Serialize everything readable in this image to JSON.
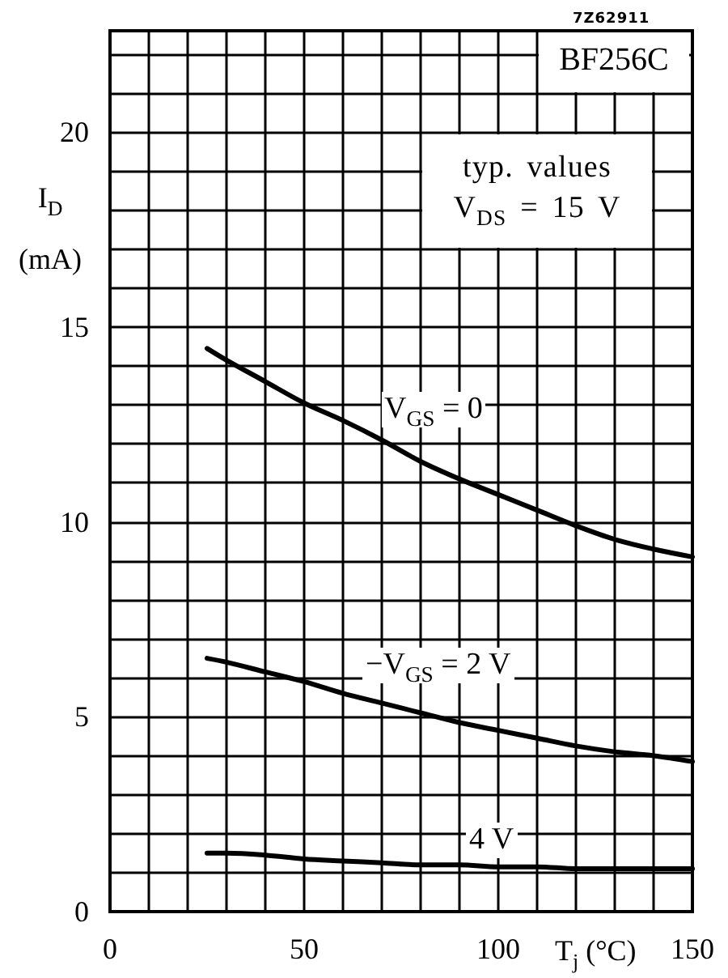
{
  "chart_data": {
    "type": "line",
    "xlabel": "T$_{j}$ (°C)",
    "ylabel": "I$_{D}$ (mA)",
    "annotations": [
      "7Z62911",
      "BF256C",
      "typ. values\nV$_{DS}$ = 15 V"
    ],
    "x": [
      25,
      30,
      40,
      50,
      60,
      70,
      80,
      90,
      100,
      110,
      120,
      130,
      140,
      150
    ],
    "series": [
      {
        "name": "V$_{GS}$ = 0",
        "color": "#000000",
        "values": [
          14.45,
          14.15,
          13.6,
          13.05,
          12.6,
          12.1,
          11.55,
          11.1,
          10.7,
          10.3,
          9.9,
          9.55,
          9.3,
          9.1
        ]
      },
      {
        "name": "−V$_{GS}$ = 2 V",
        "color": "#000000",
        "values": [
          6.5,
          6.4,
          6.15,
          5.9,
          5.6,
          5.35,
          5.1,
          4.85,
          4.65,
          4.45,
          4.25,
          4.1,
          4.0,
          3.85
        ]
      },
      {
        "name": "4 V",
        "color": "#000000",
        "values": [
          1.5,
          1.5,
          1.45,
          1.35,
          1.3,
          1.25,
          1.2,
          1.2,
          1.15,
          1.15,
          1.1,
          1.1,
          1.1,
          1.1
        ]
      }
    ],
    "xlim": [
      0,
      150
    ],
    "ylim": [
      0,
      22.6
    ],
    "xticks": [
      0,
      {
        "value": 10,
        "label": null
      },
      {
        "value": 20,
        "label": null
      },
      {
        "value": 30,
        "label": null
      },
      {
        "value": 40,
        "label": null
      },
      50,
      {
        "value": 60,
        "label": null
      },
      {
        "value": 70,
        "label": null
      },
      {
        "value": 80,
        "label": null
      },
      {
        "value": 90,
        "label": null
      },
      100,
      {
        "value": 110,
        "label": null
      },
      {
        "value": 120,
        "label": null
      },
      {
        "value": 130,
        "label": null
      },
      {
        "value": 140,
        "label": null
      },
      150
    ],
    "yticks": [
      0,
      {
        "value": 1,
        "label": null
      },
      {
        "value": 2,
        "label": null
      },
      {
        "value": 3,
        "label": null
      },
      {
        "value": 4,
        "label": null
      },
      5,
      {
        "value": 6,
        "label": null
      },
      {
        "value": 7,
        "label": null
      },
      {
        "value": 8,
        "label": null
      },
      {
        "value": 9,
        "label": null
      },
      10,
      {
        "value": 11,
        "label": null
      },
      {
        "value": 12,
        "label": null
      },
      {
        "value": 13,
        "label": null
      },
      {
        "value": 14,
        "label": null
      },
      15,
      {
        "value": 16,
        "label": null
      },
      {
        "value": 17,
        "label": null
      },
      {
        "value": 18,
        "label": null
      },
      {
        "value": 19,
        "label": null
      },
      20,
      {
        "value": 21,
        "label": null
      },
      {
        "value": 22,
        "label": null
      }
    ],
    "grid": true,
    "line_style": "solid"
  }
}
